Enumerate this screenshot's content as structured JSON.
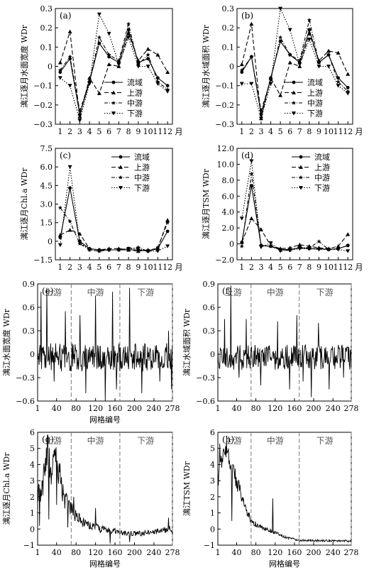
{
  "chart_data": [
    {
      "id": "a",
      "type": "line",
      "panel_label": "(a)",
      "ylabel": "漓江逐月水面宽度 WDr",
      "xlabel_suffix": "月",
      "ylim": [
        -0.3,
        0.3
      ],
      "yticks": [
        -0.3,
        -0.2,
        -0.1,
        0,
        0.1,
        0.2,
        0.3
      ],
      "ytick_labels": [
        "−0.3",
        "−0.2",
        "−0.1",
        "0",
        "0.1",
        "0.2",
        "0.3"
      ],
      "x": [
        1,
        2,
        3,
        4,
        5,
        6,
        7,
        8,
        9,
        10,
        11,
        12
      ],
      "xlim": [
        0.5,
        12.5
      ],
      "legend": {
        "position": "right-middle",
        "items": [
          "流域",
          "上游",
          "中游",
          "下游"
        ]
      },
      "series": [
        {
          "name": "流域",
          "style": "solid",
          "marker": "circle",
          "values": [
            -0.03,
            0.04,
            -0.25,
            -0.08,
            0.12,
            0.05,
            0.02,
            0.19,
            0.02,
            0.04,
            -0.06,
            -0.1
          ]
        },
        {
          "name": "上游",
          "style": "dashed",
          "marker": "triangle",
          "values": [
            0.02,
            0.18,
            -0.26,
            -0.06,
            -0.14,
            0.01,
            0.0,
            0.17,
            0.03,
            0.09,
            0.06,
            -0.03
          ]
        },
        {
          "name": "中游",
          "style": "dashdot",
          "marker": "star",
          "values": [
            -0.02,
            0.05,
            -0.23,
            -0.08,
            0.15,
            0.06,
            0.03,
            0.22,
            0.01,
            0.06,
            -0.08,
            -0.12
          ]
        },
        {
          "name": "下游",
          "style": "dotted",
          "marker": "tri-down",
          "values": [
            -0.06,
            -0.1,
            -0.28,
            -0.09,
            0.27,
            0.17,
            0.01,
            0.15,
            0.0,
            0.0,
            -0.09,
            -0.13
          ]
        }
      ]
    },
    {
      "id": "b",
      "type": "line",
      "panel_label": "(b)",
      "ylabel": "漓江逐月水域面积 WDr",
      "xlabel_suffix": "月",
      "ylim": [
        -0.3,
        0.3
      ],
      "yticks": [
        -0.3,
        -0.2,
        -0.1,
        0,
        0.1,
        0.2,
        0.3
      ],
      "ytick_labels": [
        "−0.3",
        "−0.2",
        "−0.1",
        "0",
        "0.1",
        "0.2",
        "0.3"
      ],
      "x": [
        1,
        2,
        3,
        4,
        5,
        6,
        7,
        8,
        9,
        10,
        11,
        12
      ],
      "xlim": [
        0.5,
        12.5
      ],
      "legend": {
        "position": "right-middle",
        "items": [
          "流域",
          "上游",
          "中游",
          "下游"
        ]
      },
      "series": [
        {
          "name": "流域",
          "style": "solid",
          "marker": "circle",
          "values": [
            -0.03,
            0.05,
            -0.25,
            -0.06,
            0.13,
            0.06,
            0.02,
            0.19,
            0.02,
            0.06,
            -0.06,
            -0.11
          ]
        },
        {
          "name": "上游",
          "style": "dashed",
          "marker": "triangle",
          "values": [
            0.01,
            0.22,
            -0.27,
            -0.06,
            -0.15,
            0.02,
            0.0,
            0.17,
            0.03,
            0.08,
            0.07,
            -0.04
          ]
        },
        {
          "name": "中游",
          "style": "dashdot",
          "marker": "star",
          "values": [
            -0.02,
            0.05,
            -0.23,
            -0.07,
            0.15,
            0.06,
            0.03,
            0.24,
            0.02,
            0.06,
            -0.08,
            -0.13
          ]
        },
        {
          "name": "下游",
          "style": "dotted",
          "marker": "tri-down",
          "values": [
            -0.09,
            -0.09,
            -0.27,
            -0.09,
            0.3,
            0.19,
            0.01,
            0.14,
            0.0,
            0.0,
            -0.1,
            -0.14
          ]
        }
      ]
    },
    {
      "id": "c",
      "type": "line",
      "panel_label": "(c)",
      "ylabel": "漓江逐月Chl.a WDr",
      "xlabel_suffix": "月",
      "ylim": [
        -1.5,
        7.5
      ],
      "yticks": [
        -1.5,
        0,
        1.5,
        3.0,
        4.5,
        6.0,
        7.5
      ],
      "ytick_labels": [
        "−1.5",
        "0",
        "1.5",
        "3.0",
        "4.5",
        "6.0",
        "7.5"
      ],
      "x": [
        1,
        2,
        3,
        4,
        5,
        6,
        7,
        8,
        9,
        10,
        11,
        12
      ],
      "xlim": [
        0.5,
        12.5
      ],
      "legend": {
        "position": "top-right",
        "items": [
          "流域",
          "上游",
          "中游",
          "下游"
        ]
      },
      "series": [
        {
          "name": "流域",
          "style": "solid",
          "marker": "circle",
          "values": [
            0.3,
            4.3,
            0.0,
            -0.6,
            -0.7,
            -0.7,
            -0.7,
            -0.7,
            -0.7,
            -0.8,
            -0.6,
            0.8
          ]
        },
        {
          "name": "上游",
          "style": "dashed",
          "marker": "triangle",
          "values": [
            0.5,
            0.9,
            0.6,
            -0.6,
            -0.7,
            -0.6,
            -0.6,
            -0.7,
            -0.8,
            -0.7,
            -0.6,
            1.7
          ]
        },
        {
          "name": "中游",
          "style": "dashdot",
          "marker": "star",
          "values": [
            2.7,
            1.6,
            -0.2,
            -0.7,
            -0.8,
            -0.7,
            -0.7,
            -0.6,
            -0.5,
            -0.8,
            -0.5,
            1.5
          ]
        },
        {
          "name": "下游",
          "style": "dotted",
          "marker": "tri-down",
          "values": [
            -0.3,
            6.0,
            -0.1,
            -0.7,
            -0.8,
            -0.7,
            -0.7,
            -0.6,
            -0.6,
            -0.8,
            -0.8,
            -0.4
          ]
        }
      ]
    },
    {
      "id": "d",
      "type": "line",
      "panel_label": "(d)",
      "ylabel": "漓江逐月TSM WDr",
      "xlabel_suffix": "月",
      "ylim": [
        -2.0,
        12.0
      ],
      "yticks": [
        -2.0,
        0,
        2.0,
        4.0,
        6.0,
        8.0,
        10.0,
        12.0
      ],
      "ytick_labels": [
        "−2.0",
        "0",
        "2.0",
        "4.0",
        "6.0",
        "8.0",
        "10.0",
        "12.0"
      ],
      "x": [
        1,
        2,
        3,
        4,
        5,
        6,
        7,
        8,
        9,
        10,
        11,
        12
      ],
      "xlim": [
        0.5,
        12.5
      ],
      "legend": {
        "position": "top-right",
        "items": [
          "流域",
          "上游",
          "中游",
          "下游"
        ]
      },
      "series": [
        {
          "name": "流域",
          "style": "solid",
          "marker": "circle",
          "values": [
            0.2,
            7.3,
            -0.2,
            -0.3,
            -0.7,
            -0.7,
            -0.5,
            -0.6,
            -0.6,
            -0.7,
            -0.6,
            -0.2
          ]
        },
        {
          "name": "上游",
          "style": "dashed",
          "marker": "triangle",
          "values": [
            0.2,
            3.2,
            1.8,
            -0.2,
            -0.6,
            -0.5,
            -0.1,
            -0.3,
            -0.5,
            -0.6,
            -0.3,
            1.2
          ]
        },
        {
          "name": "中游",
          "style": "dashdot",
          "marker": "star",
          "values": [
            -0.3,
            8.8,
            -0.2,
            -0.3,
            -0.8,
            -0.8,
            -0.4,
            -0.5,
            0.3,
            -0.7,
            -0.6,
            -0.2
          ]
        },
        {
          "name": "下游",
          "style": "dotted",
          "marker": "tri-down",
          "values": [
            3.2,
            10.4,
            -0.4,
            0.1,
            -0.9,
            -0.8,
            -0.6,
            -0.6,
            -0.7,
            -0.7,
            -0.7,
            -0.9
          ]
        }
      ]
    },
    {
      "id": "e",
      "type": "line",
      "panel_label": "(e)",
      "ylabel": "漓江水面宽度 WDr",
      "xlabel": "网格编号",
      "xlim": [
        1,
        278
      ],
      "xticks": [
        1,
        40,
        80,
        120,
        160,
        200,
        240,
        278
      ],
      "ylim": [
        -0.6,
        0.9
      ],
      "yticks": [
        -0.6,
        -0.3,
        0,
        0.3,
        0.6,
        0.9
      ],
      "ytick_labels": [
        "−0.6",
        "−0.3",
        "0",
        "0.3",
        "0.6",
        "0.9"
      ],
      "dividers": [
        70,
        170,
        278
      ],
      "region_labels": [
        {
          "text": "上游",
          "x": 33
        },
        {
          "text": "中游",
          "x": 120
        },
        {
          "text": "下游",
          "x": 223
        }
      ],
      "series": [
        {
          "name": "",
          "style": "solid",
          "noise_amp": 0.18,
          "noise_bias": -0.04,
          "spikes": [
            [
              8,
              0.8
            ],
            [
              20,
              0.85
            ],
            [
              35,
              -0.35
            ],
            [
              58,
              0.55
            ],
            [
              88,
              0.5
            ],
            [
              100,
              -0.5
            ],
            [
              120,
              0.75
            ],
            [
              140,
              -0.6
            ],
            [
              155,
              0.8
            ],
            [
              163,
              -0.45
            ],
            [
              190,
              0.85
            ],
            [
              215,
              -0.5
            ],
            [
              252,
              -0.35
            ],
            [
              270,
              0.3
            ],
            [
              276,
              -0.45
            ]
          ]
        }
      ]
    },
    {
      "id": "f",
      "type": "line",
      "panel_label": "(f)",
      "ylabel": "漓江水域面积 WDr",
      "xlabel": "",
      "xlim": [
        1,
        278
      ],
      "xticks": [
        1,
        40,
        80,
        120,
        160,
        200,
        240,
        278
      ],
      "ylim": [
        -0.6,
        0.9
      ],
      "yticks": [
        -0.6,
        -0.3,
        0,
        0.3,
        0.6,
        0.9
      ],
      "ytick_labels": [
        "−0.6",
        "−0.3",
        "0",
        "0.3",
        "0.6",
        "0.9"
      ],
      "dividers": [
        70,
        170,
        278
      ],
      "region_labels": [
        {
          "text": "上游",
          "x": 33
        },
        {
          "text": "中游",
          "x": 120
        },
        {
          "text": "下游",
          "x": 223
        }
      ],
      "series": [
        {
          "name": "",
          "style": "solid",
          "noise_amp": 0.16,
          "noise_bias": -0.04,
          "spikes": [
            [
              15,
              0.45
            ],
            [
              28,
              0.88
            ],
            [
              45,
              -0.3
            ],
            [
              60,
              0.45
            ],
            [
              90,
              -0.4
            ],
            [
              125,
              0.42
            ],
            [
              150,
              -0.45
            ],
            [
              165,
              0.5
            ],
            [
              178,
              -0.35
            ],
            [
              195,
              -0.55
            ],
            [
              210,
              0.4
            ],
            [
              232,
              -0.45
            ],
            [
              262,
              -0.3
            ]
          ]
        }
      ]
    },
    {
      "id": "g",
      "type": "line",
      "panel_label": "(g)",
      "ylabel": "漓江逐月Chl.a WDr",
      "xlabel": "网格编号",
      "xlim": [
        1,
        278
      ],
      "xticks": [
        1,
        40,
        80,
        120,
        160,
        200,
        240,
        278
      ],
      "ylim": [
        -1,
        6
      ],
      "yticks": [
        -1,
        0,
        1,
        2,
        3,
        4,
        5,
        6
      ],
      "ytick_labels": [
        "−1",
        "0",
        "1",
        "2",
        "3",
        "4",
        "5",
        "6"
      ],
      "dividers": [
        70,
        170,
        278
      ],
      "region_labels": [
        {
          "text": "上游",
          "x": 33
        },
        {
          "text": "中游",
          "x": 120
        },
        {
          "text": "下游",
          "x": 223
        }
      ],
      "series": [
        {
          "name": "",
          "style": "solid",
          "knots": [
            [
              1,
              2.2
            ],
            [
              8,
              2.0
            ],
            [
              15,
              3.5
            ],
            [
              22,
              5.3
            ],
            [
              28,
              3.0
            ],
            [
              35,
              4.8
            ],
            [
              45,
              3.5
            ],
            [
              55,
              2.0
            ],
            [
              65,
              1.5
            ],
            [
              75,
              1.0
            ],
            [
              90,
              0.5
            ],
            [
              110,
              0.2
            ],
            [
              130,
              0.0
            ],
            [
              150,
              -0.1
            ],
            [
              170,
              -0.2
            ],
            [
              200,
              -0.3
            ],
            [
              240,
              -0.2
            ],
            [
              278,
              0.0
            ]
          ],
          "noise_amp": 0.9,
          "spikes": [
            [
              5,
              0.2
            ],
            [
              24,
              0.6
            ],
            [
              40,
              1.5
            ],
            [
              63,
              0.1
            ],
            [
              75,
              2.0
            ],
            [
              120,
              1.3
            ],
            [
              150,
              -0.9
            ],
            [
              190,
              -0.8
            ],
            [
              270,
              0.7
            ]
          ]
        }
      ]
    },
    {
      "id": "h",
      "type": "line",
      "panel_label": "(h)",
      "ylabel": "漓江TSM WDr",
      "xlabel": "网格编号",
      "xlim": [
        1,
        278
      ],
      "xticks": [
        1,
        40,
        80,
        120,
        160,
        200,
        240,
        278
      ],
      "ylim": [
        -1,
        6
      ],
      "yticks": [
        -1,
        0,
        1,
        2,
        3,
        4,
        5,
        6
      ],
      "ytick_labels": [
        "−1",
        "0",
        "1",
        "2",
        "3",
        "4",
        "5",
        "6"
      ],
      "dividers": [
        70,
        170,
        278
      ],
      "region_labels": [
        {
          "text": "上游",
          "x": 33
        },
        {
          "text": "中游",
          "x": 120
        },
        {
          "text": "下游",
          "x": 223
        }
      ],
      "series": [
        {
          "name": "",
          "style": "solid",
          "knots": [
            [
              1,
              3.0
            ],
            [
              10,
              4.5
            ],
            [
              20,
              5.0
            ],
            [
              30,
              3.8
            ],
            [
              40,
              3.0
            ],
            [
              50,
              2.0
            ],
            [
              60,
              1.2
            ],
            [
              70,
              0.5
            ],
            [
              85,
              0.2
            ],
            [
              100,
              0.0
            ],
            [
              120,
              -0.2
            ],
            [
              140,
              -0.5
            ],
            [
              170,
              -0.7
            ],
            [
              278,
              -0.75
            ]
          ],
          "noise_amp": 0.55,
          "spikes": [
            [
              5,
              5.3
            ],
            [
              23,
              5.0
            ],
            [
              30,
              0.5
            ],
            [
              115,
              1.9
            ]
          ]
        }
      ]
    }
  ]
}
